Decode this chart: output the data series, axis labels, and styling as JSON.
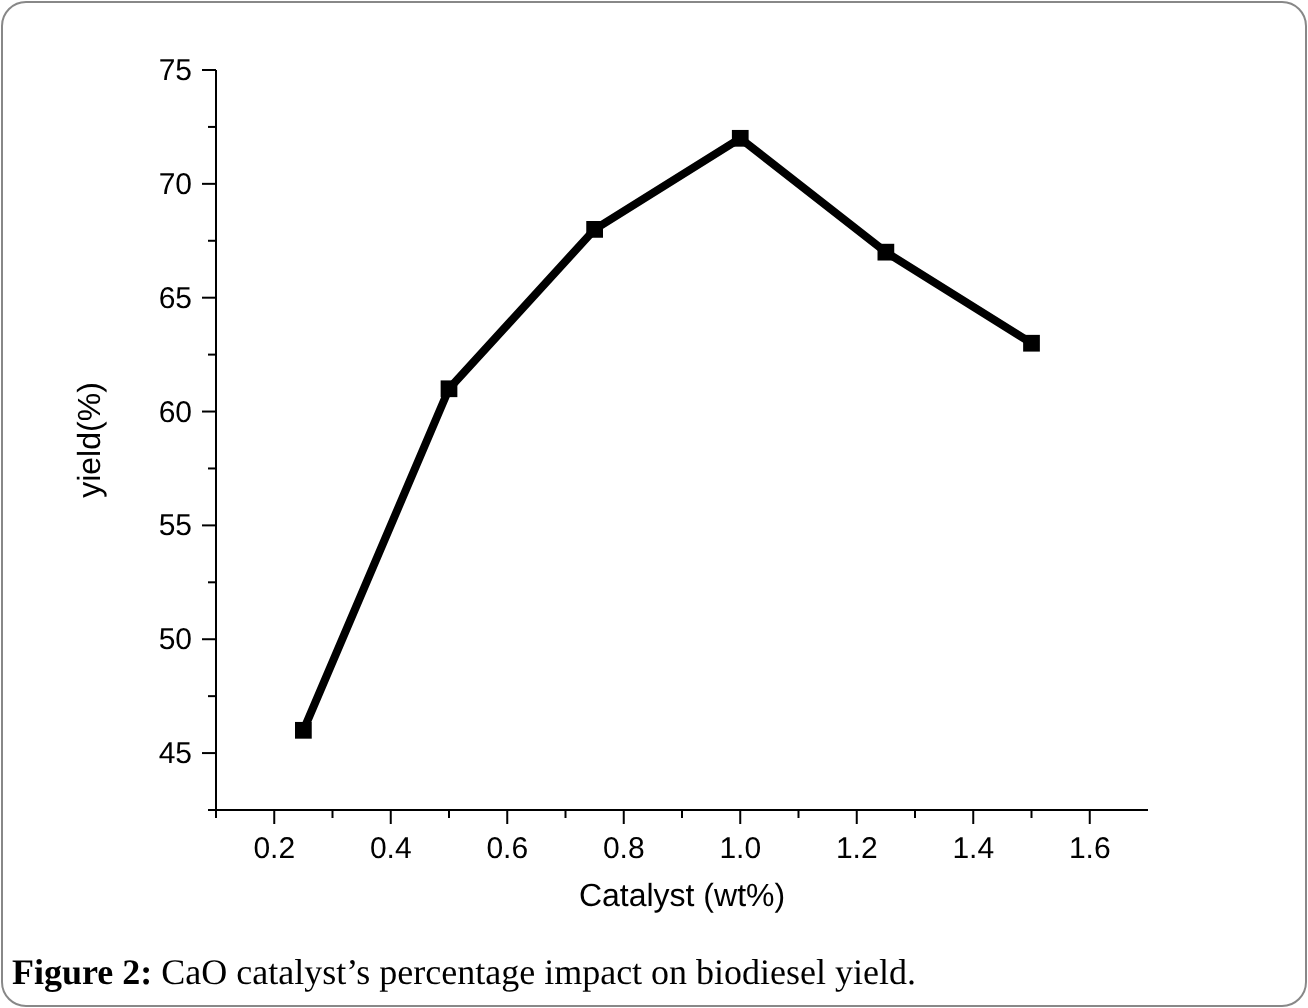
{
  "chart_data": {
    "type": "line",
    "xlabel": "Catalyst (wt%)",
    "ylabel": "yield(%)",
    "annotations": [
      "Figure 2: CaO catalyst’s percentage impact on biodiesel yield."
    ],
    "x": [
      0.25,
      0.5,
      0.75,
      1.0,
      1.25,
      1.5
    ],
    "series": [
      {
        "color": "#000000",
        "values": [
          46,
          61,
          68,
          72,
          67,
          63
        ]
      }
    ],
    "marker": "square",
    "line_style": "solid",
    "grid": false,
    "xlim": [
      0.1,
      1.7
    ],
    "ylim": [
      42.5,
      75
    ],
    "xticks": [
      {
        "value": 0.1,
        "label": null
      },
      {
        "value": 0.2,
        "label": "0.2"
      },
      {
        "value": 0.3,
        "label": null
      },
      {
        "value": 0.4,
        "label": "0.4"
      },
      {
        "value": 0.5,
        "label": null
      },
      {
        "value": 0.6,
        "label": "0.6"
      },
      {
        "value": 0.7,
        "label": null
      },
      {
        "value": 0.8,
        "label": "0.8"
      },
      {
        "value": 0.9,
        "label": null
      },
      {
        "value": 1.0,
        "label": "1.0"
      },
      {
        "value": 1.1,
        "label": null
      },
      {
        "value": 1.2,
        "label": "1.2"
      },
      {
        "value": 1.3,
        "label": null
      },
      {
        "value": 1.4,
        "label": "1.4"
      },
      {
        "value": 1.5,
        "label": null
      },
      {
        "value": 1.6,
        "label": "1.6"
      }
    ],
    "yticks": [
      {
        "value": 42.5,
        "label": null
      },
      45,
      {
        "value": 47.5,
        "label": null
      },
      50,
      {
        "value": 52.5,
        "label": null
      },
      55,
      {
        "value": 57.5,
        "label": null
      },
      60,
      {
        "value": 62.5,
        "label": null
      },
      65,
      {
        "value": 67.5,
        "label": null
      },
      70,
      {
        "value": 72.5,
        "label": null
      },
      75
    ]
  }
}
